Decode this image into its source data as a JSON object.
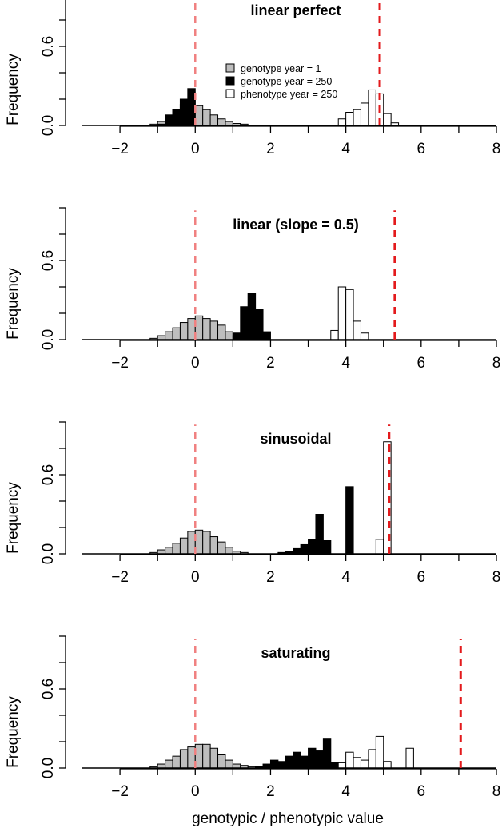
{
  "xlabel": "genotypic / phenotypic value",
  "chart_data": [
    {
      "type": "histogram",
      "title": "linear perfect",
      "ylabel": "Frequency",
      "xlim": [
        -3,
        8
      ],
      "ylim": [
        0,
        1
      ],
      "xticks": [
        "-2",
        "0",
        "2",
        "4",
        "6",
        "8"
      ],
      "yticks": [
        "0.0",
        "0.6"
      ],
      "bin_width": 0.2,
      "initial_line_x": 0,
      "target_line_x": 4.9,
      "legend": {
        "position": "top-center",
        "entries": [
          "genotype year = 1",
          "genotype year = 250",
          "phenotype year = 250"
        ]
      },
      "series": [
        {
          "name": "genotype year = 1",
          "color": "#bebebe",
          "bins": [
            [
              -1.2,
              0.01
            ],
            [
              -1.0,
              0.03
            ],
            [
              -0.8,
              0.07
            ],
            [
              -0.6,
              0.12
            ],
            [
              -0.4,
              0.16
            ],
            [
              -0.2,
              0.19
            ],
            [
              0.0,
              0.15
            ],
            [
              0.2,
              0.12
            ],
            [
              0.4,
              0.08
            ],
            [
              0.6,
              0.05
            ],
            [
              0.8,
              0.03
            ],
            [
              1.0,
              0.015
            ],
            [
              1.2,
              0.01
            ]
          ]
        },
        {
          "name": "genotype year = 250",
          "color": "#000000",
          "bins": [
            [
              -1.0,
              0.01
            ],
            [
              -0.8,
              0.08
            ],
            [
              -0.6,
              0.12
            ],
            [
              -0.4,
              0.2
            ],
            [
              -0.2,
              0.28
            ]
          ]
        },
        {
          "name": "phenotype year = 250",
          "color": "#ffffff",
          "bins": [
            [
              3.8,
              0.05
            ],
            [
              4.0,
              0.1
            ],
            [
              4.2,
              0.12
            ],
            [
              4.4,
              0.17
            ],
            [
              4.6,
              0.27
            ],
            [
              4.8,
              0.24
            ],
            [
              5.0,
              0.09
            ],
            [
              5.2,
              0.02
            ]
          ]
        }
      ]
    },
    {
      "type": "histogram",
      "title": "linear (slope = 0.5)",
      "ylabel": "Frequency",
      "xlim": [
        -3,
        8
      ],
      "ylim": [
        0,
        1
      ],
      "xticks": [
        "-2",
        "0",
        "2",
        "4",
        "6",
        "8"
      ],
      "yticks": [
        "0.0",
        "0.6"
      ],
      "bin_width": 0.2,
      "initial_line_x": 0,
      "target_line_x": 5.3,
      "series": [
        {
          "name": "genotype year = 1",
          "color": "#bebebe",
          "bins": [
            [
              -1.2,
              0.01
            ],
            [
              -1.0,
              0.03
            ],
            [
              -0.8,
              0.06
            ],
            [
              -0.6,
              0.09
            ],
            [
              -0.4,
              0.13
            ],
            [
              -0.2,
              0.16
            ],
            [
              0.0,
              0.18
            ],
            [
              0.2,
              0.16
            ],
            [
              0.4,
              0.14
            ],
            [
              0.6,
              0.11
            ],
            [
              0.8,
              0.06
            ],
            [
              1.0,
              0.03
            ],
            [
              1.2,
              0.01
            ]
          ]
        },
        {
          "name": "genotype year = 250",
          "color": "#000000",
          "bins": [
            [
              1.0,
              0.05
            ],
            [
              1.2,
              0.25
            ],
            [
              1.4,
              0.35
            ],
            [
              1.6,
              0.23
            ],
            [
              1.8,
              0.06
            ]
          ]
        },
        {
          "name": "phenotype year = 250",
          "color": "#ffffff",
          "bins": [
            [
              3.6,
              0.07
            ],
            [
              3.8,
              0.4
            ],
            [
              4.0,
              0.38
            ],
            [
              4.2,
              0.14
            ],
            [
              4.4,
              0.05
            ]
          ]
        }
      ]
    },
    {
      "type": "histogram",
      "title": "sinusoidal",
      "ylabel": "Frequency",
      "xlim": [
        -3,
        8
      ],
      "ylim": [
        0,
        1
      ],
      "xticks": [
        "-2",
        "0",
        "2",
        "4",
        "6",
        "8"
      ],
      "yticks": [
        "0.0",
        "0.6"
      ],
      "bin_width": 0.2,
      "initial_line_x": 0,
      "target_line_x": 5.15,
      "series": [
        {
          "name": "genotype year = 1",
          "color": "#bebebe",
          "bins": [
            [
              -1.2,
              0.01
            ],
            [
              -1.0,
              0.03
            ],
            [
              -0.8,
              0.05
            ],
            [
              -0.6,
              0.08
            ],
            [
              -0.4,
              0.12
            ],
            [
              -0.2,
              0.17
            ],
            [
              0.0,
              0.18
            ],
            [
              0.2,
              0.17
            ],
            [
              0.4,
              0.13
            ],
            [
              0.6,
              0.09
            ],
            [
              0.8,
              0.05
            ],
            [
              1.0,
              0.02
            ],
            [
              1.2,
              0.01
            ]
          ]
        },
        {
          "name": "genotype year = 250",
          "color": "#000000",
          "bins": [
            [
              2.2,
              0.01
            ],
            [
              2.4,
              0.02
            ],
            [
              2.6,
              0.04
            ],
            [
              2.8,
              0.07
            ],
            [
              3.0,
              0.11
            ],
            [
              3.2,
              0.3
            ],
            [
              3.4,
              0.1
            ],
            [
              4.0,
              0.51
            ]
          ]
        },
        {
          "name": "phenotype year = 250",
          "color": "#ffffff",
          "bins": [
            [
              4.8,
              0.11
            ],
            [
              5.0,
              0.85
            ]
          ]
        }
      ]
    },
    {
      "type": "histogram",
      "title": "saturating",
      "ylabel": "Frequency",
      "xlim": [
        -3,
        8
      ],
      "ylim": [
        0,
        1
      ],
      "xticks": [
        "-2",
        "0",
        "2",
        "4",
        "6",
        "8"
      ],
      "yticks": [
        "0.0",
        "0.6"
      ],
      "bin_width": 0.2,
      "initial_line_x": 0,
      "target_line_x": 7.05,
      "series": [
        {
          "name": "genotype year = 1",
          "color": "#bebebe",
          "bins": [
            [
              -1.2,
              0.01
            ],
            [
              -1.0,
              0.03
            ],
            [
              -0.8,
              0.06
            ],
            [
              -0.6,
              0.09
            ],
            [
              -0.4,
              0.14
            ],
            [
              -0.2,
              0.16
            ],
            [
              0.0,
              0.18
            ],
            [
              0.2,
              0.18
            ],
            [
              0.4,
              0.15
            ],
            [
              0.6,
              0.1
            ],
            [
              0.8,
              0.06
            ],
            [
              1.0,
              0.03
            ],
            [
              1.2,
              0.02
            ],
            [
              1.4,
              0.01
            ]
          ]
        },
        {
          "name": "genotype year = 250",
          "color": "#000000",
          "bins": [
            [
              1.6,
              0.01
            ],
            [
              1.8,
              0.03
            ],
            [
              2.0,
              0.06
            ],
            [
              2.2,
              0.05
            ],
            [
              2.4,
              0.09
            ],
            [
              2.6,
              0.12
            ],
            [
              2.8,
              0.09
            ],
            [
              3.0,
              0.15
            ],
            [
              3.2,
              0.13
            ],
            [
              3.4,
              0.22
            ],
            [
              3.6,
              0.04
            ]
          ]
        },
        {
          "name": "phenotype year = 250",
          "color": "#ffffff",
          "bins": [
            [
              3.8,
              0.04
            ],
            [
              4.0,
              0.12
            ],
            [
              4.2,
              0.08
            ],
            [
              4.4,
              0.06
            ],
            [
              4.6,
              0.14
            ],
            [
              4.8,
              0.24
            ],
            [
              5.0,
              0.05
            ],
            [
              5.6,
              0.15
            ]
          ]
        }
      ]
    }
  ]
}
